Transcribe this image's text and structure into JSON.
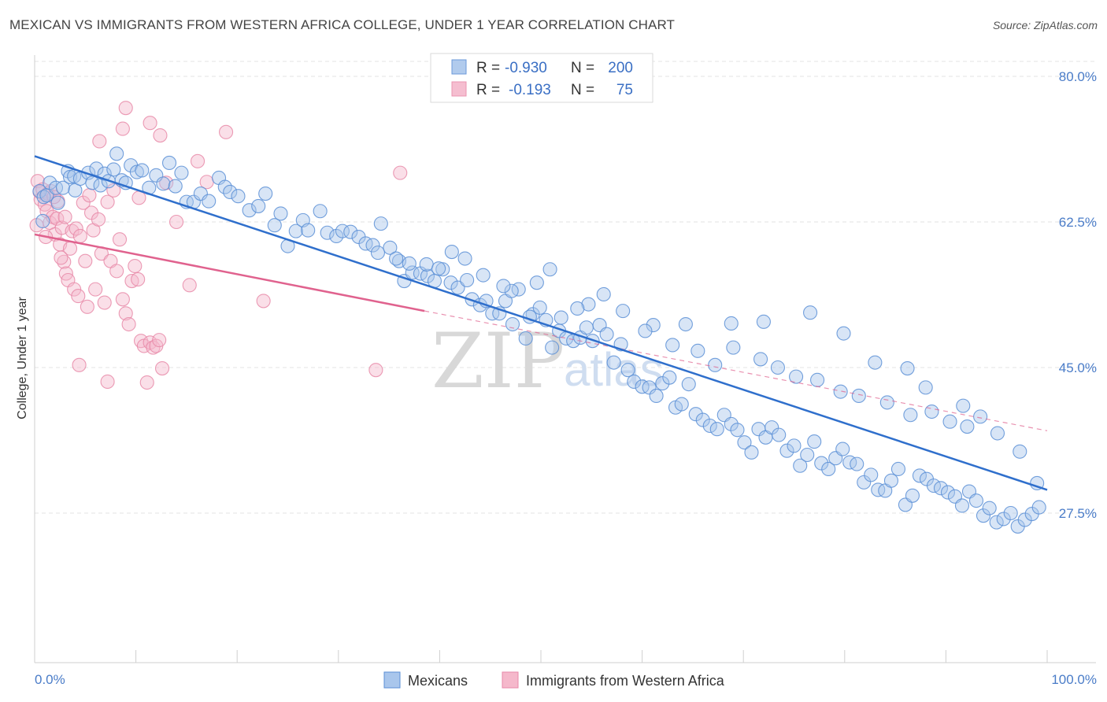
{
  "title": "MEXICAN VS IMMIGRANTS FROM WESTERN AFRICA COLLEGE, UNDER 1 YEAR CORRELATION CHART",
  "source": "Source: ZipAtlas.com",
  "watermark": {
    "main": "ZIP",
    "sub": "atlas"
  },
  "colors": {
    "blue_fill": "#a9c6ec",
    "blue_stroke": "#5b8fd6",
    "blue_line": "#2f6fcc",
    "pink_fill": "#f5b8cb",
    "pink_stroke": "#e889a8",
    "pink_line": "#e0628e",
    "tick_text": "#4a7cc8",
    "grid": "#e3e3e3"
  },
  "legend_box": {
    "rows": [
      {
        "r_label": "R =",
        "r_value": "-0.930",
        "n_label": "N =",
        "n_value": "200",
        "series": "blue"
      },
      {
        "r_label": "R =",
        "r_value": "-0.193",
        "n_label": "N =",
        "n_value": "75",
        "series": "pink"
      }
    ]
  },
  "chart_data": {
    "type": "scatter",
    "title": "MEXICAN VS IMMIGRANTS FROM WESTERN AFRICA COLLEGE, UNDER 1 YEAR CORRELATION CHART",
    "xlabel": "",
    "ylabel": "College, Under 1 year",
    "xlim": [
      0,
      100
    ],
    "ylim": [
      11,
      84
    ],
    "x_tick_labels": [
      "0.0%",
      "100.0%"
    ],
    "y_ticks": [
      27.5,
      45.0,
      62.5,
      80.0
    ],
    "y_tick_labels": [
      "27.5%",
      "45.0%",
      "62.5%",
      "80.0%"
    ],
    "grid": true,
    "legend_position": "bottom",
    "series": [
      {
        "name": "Mexicans",
        "color": "#a9c6ec",
        "trend": {
          "x": [
            0,
            100
          ],
          "y": [
            70.4,
            30.3
          ]
        },
        "points": [
          [
            0.5,
            66.2
          ],
          [
            0.8,
            62.6
          ],
          [
            0.9,
            65.5
          ],
          [
            1.2,
            65.7
          ],
          [
            1.5,
            67.2
          ],
          [
            2.1,
            66.6
          ],
          [
            2.3,
            64.8
          ],
          [
            2.8,
            66.6
          ],
          [
            3.3,
            68.6
          ],
          [
            3.5,
            67.9
          ],
          [
            3.9,
            68.0
          ],
          [
            4.0,
            66.3
          ],
          [
            4.5,
            67.7
          ],
          [
            5.3,
            68.4
          ],
          [
            5.7,
            67.2
          ],
          [
            6.1,
            68.9
          ],
          [
            6.5,
            66.9
          ],
          [
            6.9,
            68.3
          ],
          [
            7.3,
            67.4
          ],
          [
            7.8,
            68.8
          ],
          [
            8.1,
            70.7
          ],
          [
            8.6,
            67.5
          ],
          [
            9.0,
            67.2
          ],
          [
            9.5,
            69.3
          ],
          [
            10.1,
            68.5
          ],
          [
            10.6,
            68.7
          ],
          [
            11.3,
            66.6
          ],
          [
            12.0,
            68.1
          ],
          [
            12.7,
            67.1
          ],
          [
            13.3,
            69.6
          ],
          [
            13.9,
            66.8
          ],
          [
            14.5,
            68.4
          ],
          [
            15.0,
            64.9
          ],
          [
            15.7,
            64.9
          ],
          [
            16.4,
            65.9
          ],
          [
            17.2,
            65.0
          ],
          [
            18.2,
            67.8
          ],
          [
            18.8,
            66.7
          ],
          [
            19.3,
            66.1
          ],
          [
            20.1,
            65.6
          ],
          [
            21.2,
            63.9
          ],
          [
            22.1,
            64.4
          ],
          [
            22.8,
            65.9
          ],
          [
            23.7,
            62.1
          ],
          [
            24.3,
            63.5
          ],
          [
            25.0,
            59.6
          ],
          [
            25.8,
            61.4
          ],
          [
            26.5,
            62.7
          ],
          [
            27.0,
            61.5
          ],
          [
            28.2,
            63.8
          ],
          [
            28.9,
            61.2
          ],
          [
            29.8,
            60.8
          ],
          [
            30.4,
            61.4
          ],
          [
            31.2,
            61.3
          ],
          [
            32.0,
            60.7
          ],
          [
            32.7,
            59.9
          ],
          [
            33.4,
            59.7
          ],
          [
            34.2,
            62.3
          ],
          [
            35.1,
            59.4
          ],
          [
            36.0,
            57.8
          ],
          [
            36.5,
            55.4
          ],
          [
            37.3,
            56.4
          ],
          [
            38.1,
            56.3
          ],
          [
            38.8,
            56.0
          ],
          [
            39.5,
            55.4
          ],
          [
            40.3,
            56.8
          ],
          [
            41.1,
            55.2
          ],
          [
            41.8,
            54.6
          ],
          [
            42.5,
            58.1
          ],
          [
            43.2,
            53.2
          ],
          [
            44.0,
            52.5
          ],
          [
            44.6,
            53.0
          ],
          [
            45.2,
            51.5
          ],
          [
            45.9,
            51.5
          ],
          [
            46.5,
            53.0
          ],
          [
            47.2,
            50.2
          ],
          [
            47.8,
            54.4
          ],
          [
            48.5,
            48.5
          ],
          [
            49.2,
            51.4
          ],
          [
            49.9,
            52.2
          ],
          [
            50.5,
            50.7
          ],
          [
            51.1,
            47.4
          ],
          [
            51.8,
            49.4
          ],
          [
            52.5,
            48.5
          ],
          [
            53.2,
            48.2
          ],
          [
            53.9,
            48.6
          ],
          [
            54.5,
            49.8
          ],
          [
            55.1,
            48.2
          ],
          [
            55.8,
            50.1
          ],
          [
            56.5,
            49.0
          ],
          [
            57.2,
            45.6
          ],
          [
            57.9,
            47.8
          ],
          [
            58.6,
            44.7
          ],
          [
            59.2,
            43.3
          ],
          [
            60.0,
            42.7
          ],
          [
            60.7,
            42.6
          ],
          [
            61.4,
            41.6
          ],
          [
            62.0,
            43.1
          ],
          [
            62.7,
            43.8
          ],
          [
            63.3,
            40.2
          ],
          [
            63.9,
            40.6
          ],
          [
            64.6,
            43.0
          ],
          [
            65.3,
            39.4
          ],
          [
            66.0,
            38.7
          ],
          [
            66.7,
            38.0
          ],
          [
            67.4,
            37.6
          ],
          [
            68.1,
            39.3
          ],
          [
            68.8,
            38.2
          ],
          [
            69.4,
            37.5
          ],
          [
            70.1,
            36.0
          ],
          [
            70.8,
            34.8
          ],
          [
            71.5,
            37.6
          ],
          [
            72.2,
            36.6
          ],
          [
            72.8,
            37.8
          ],
          [
            73.5,
            36.9
          ],
          [
            74.3,
            35.0
          ],
          [
            75.0,
            35.6
          ],
          [
            75.6,
            33.2
          ],
          [
            76.3,
            34.5
          ],
          [
            77.0,
            36.1
          ],
          [
            77.7,
            33.5
          ],
          [
            78.4,
            32.8
          ],
          [
            79.1,
            34.1
          ],
          [
            79.8,
            35.2
          ],
          [
            80.5,
            33.6
          ],
          [
            81.2,
            33.4
          ],
          [
            81.9,
            31.2
          ],
          [
            82.6,
            32.1
          ],
          [
            83.3,
            30.3
          ],
          [
            84.0,
            30.2
          ],
          [
            84.6,
            31.4
          ],
          [
            85.3,
            32.8
          ],
          [
            86.0,
            28.5
          ],
          [
            86.7,
            29.6
          ],
          [
            87.4,
            32.0
          ],
          [
            88.1,
            31.6
          ],
          [
            88.8,
            30.8
          ],
          [
            89.5,
            30.5
          ],
          [
            90.2,
            30.0
          ],
          [
            90.9,
            29.5
          ],
          [
            91.6,
            28.4
          ],
          [
            92.3,
            30.1
          ],
          [
            93.0,
            29.0
          ],
          [
            93.7,
            27.2
          ],
          [
            94.3,
            28.1
          ],
          [
            95.0,
            26.4
          ],
          [
            95.7,
            26.8
          ],
          [
            96.4,
            27.5
          ],
          [
            97.1,
            25.9
          ],
          [
            97.8,
            26.7
          ],
          [
            98.5,
            27.4
          ],
          [
            99.2,
            28.2
          ],
          [
            50.9,
            56.8
          ],
          [
            56.2,
            53.8
          ],
          [
            61.1,
            50.1
          ],
          [
            64.3,
            50.2
          ],
          [
            68.8,
            50.3
          ],
          [
            72.0,
            50.5
          ],
          [
            76.6,
            51.6
          ],
          [
            79.9,
            49.1
          ],
          [
            83.0,
            45.6
          ],
          [
            86.2,
            44.9
          ],
          [
            88.0,
            42.6
          ],
          [
            91.7,
            40.4
          ],
          [
            93.4,
            39.1
          ],
          [
            95.1,
            37.1
          ],
          [
            97.3,
            34.9
          ],
          [
            99.0,
            31.1
          ],
          [
            38.7,
            57.4
          ],
          [
            41.2,
            58.9
          ],
          [
            44.3,
            56.1
          ],
          [
            47.1,
            54.2
          ],
          [
            49.6,
            55.2
          ],
          [
            52.0,
            51.0
          ],
          [
            54.7,
            52.6
          ],
          [
            58.1,
            51.8
          ],
          [
            60.3,
            49.4
          ],
          [
            63.0,
            47.7
          ],
          [
            65.5,
            47.0
          ],
          [
            67.2,
            45.3
          ],
          [
            69.0,
            47.4
          ],
          [
            71.7,
            46.0
          ],
          [
            73.4,
            45.0
          ],
          [
            75.2,
            43.9
          ],
          [
            77.3,
            43.5
          ],
          [
            79.6,
            42.1
          ],
          [
            81.4,
            41.6
          ],
          [
            84.2,
            40.8
          ],
          [
            86.5,
            39.3
          ],
          [
            88.6,
            39.7
          ],
          [
            90.4,
            38.5
          ],
          [
            92.1,
            37.9
          ],
          [
            33.9,
            58.8
          ],
          [
            35.7,
            58.1
          ],
          [
            37.0,
            57.5
          ],
          [
            39.9,
            56.9
          ],
          [
            42.7,
            55.5
          ],
          [
            46.3,
            54.8
          ],
          [
            48.9,
            51.1
          ],
          [
            53.6,
            52.1
          ]
        ]
      },
      {
        "name": "Immigrants from Western Africa",
        "color": "#f5b8cb",
        "trend": {
          "x": [
            0,
            38.5
          ],
          "y": [
            61.0,
            51.8
          ]
        },
        "trend_dashed": {
          "x": [
            38.5,
            100
          ],
          "y": [
            51.8,
            37.4
          ]
        },
        "points": [
          [
            0.3,
            67.4
          ],
          [
            0.5,
            66.1
          ],
          [
            0.6,
            65.2
          ],
          [
            0.8,
            66.4
          ],
          [
            1.0,
            64.6
          ],
          [
            1.2,
            63.8
          ],
          [
            1.3,
            65.9
          ],
          [
            1.5,
            62.4
          ],
          [
            1.6,
            66.2
          ],
          [
            1.8,
            63.1
          ],
          [
            2.0,
            61.0
          ],
          [
            2.2,
            62.9
          ],
          [
            2.3,
            65.0
          ],
          [
            2.5,
            59.8
          ],
          [
            2.7,
            61.8
          ],
          [
            2.9,
            57.7
          ],
          [
            3.1,
            56.3
          ],
          [
            3.3,
            55.5
          ],
          [
            3.5,
            59.3
          ],
          [
            3.7,
            61.4
          ],
          [
            3.9,
            54.4
          ],
          [
            4.1,
            61.7
          ],
          [
            4.3,
            53.6
          ],
          [
            4.5,
            60.8
          ],
          [
            4.8,
            64.8
          ],
          [
            5.0,
            57.8
          ],
          [
            5.2,
            52.3
          ],
          [
            5.4,
            65.7
          ],
          [
            5.6,
            63.6
          ],
          [
            5.8,
            61.5
          ],
          [
            6.0,
            54.4
          ],
          [
            6.3,
            62.8
          ],
          [
            6.6,
            58.7
          ],
          [
            6.9,
            52.8
          ],
          [
            7.2,
            64.9
          ],
          [
            7.5,
            57.8
          ],
          [
            7.8,
            66.3
          ],
          [
            8.1,
            56.6
          ],
          [
            8.4,
            60.4
          ],
          [
            8.7,
            53.2
          ],
          [
            9.0,
            51.5
          ],
          [
            9.3,
            50.2
          ],
          [
            9.6,
            55.4
          ],
          [
            9.9,
            57.2
          ],
          [
            10.2,
            55.6
          ],
          [
            10.5,
            48.2
          ],
          [
            10.8,
            47.6
          ],
          [
            11.1,
            43.2
          ],
          [
            11.4,
            48.0
          ],
          [
            11.7,
            47.4
          ],
          [
            12.0,
            47.6
          ],
          [
            12.3,
            48.3
          ],
          [
            12.6,
            44.9
          ],
          [
            13.0,
            67.2
          ],
          [
            14.0,
            62.5
          ],
          [
            15.3,
            54.9
          ],
          [
            16.1,
            69.8
          ],
          [
            17.0,
            67.3
          ],
          [
            18.9,
            73.3
          ],
          [
            22.6,
            53.0
          ],
          [
            33.7,
            44.7
          ],
          [
            36.1,
            68.4
          ],
          [
            9.0,
            76.2
          ],
          [
            11.4,
            74.4
          ],
          [
            12.4,
            72.9
          ],
          [
            8.7,
            73.7
          ],
          [
            6.4,
            72.2
          ],
          [
            4.4,
            45.3
          ],
          [
            7.2,
            43.3
          ],
          [
            1.9,
            65.5
          ],
          [
            3.0,
            63.1
          ],
          [
            0.2,
            62.1
          ],
          [
            1.1,
            60.7
          ],
          [
            2.6,
            58.2
          ],
          [
            10.3,
            65.4
          ]
        ]
      }
    ]
  },
  "bottom_legend": {
    "items": [
      {
        "label": "Mexicans",
        "series": "blue"
      },
      {
        "label": "Immigrants from Western Africa",
        "series": "pink"
      }
    ]
  }
}
